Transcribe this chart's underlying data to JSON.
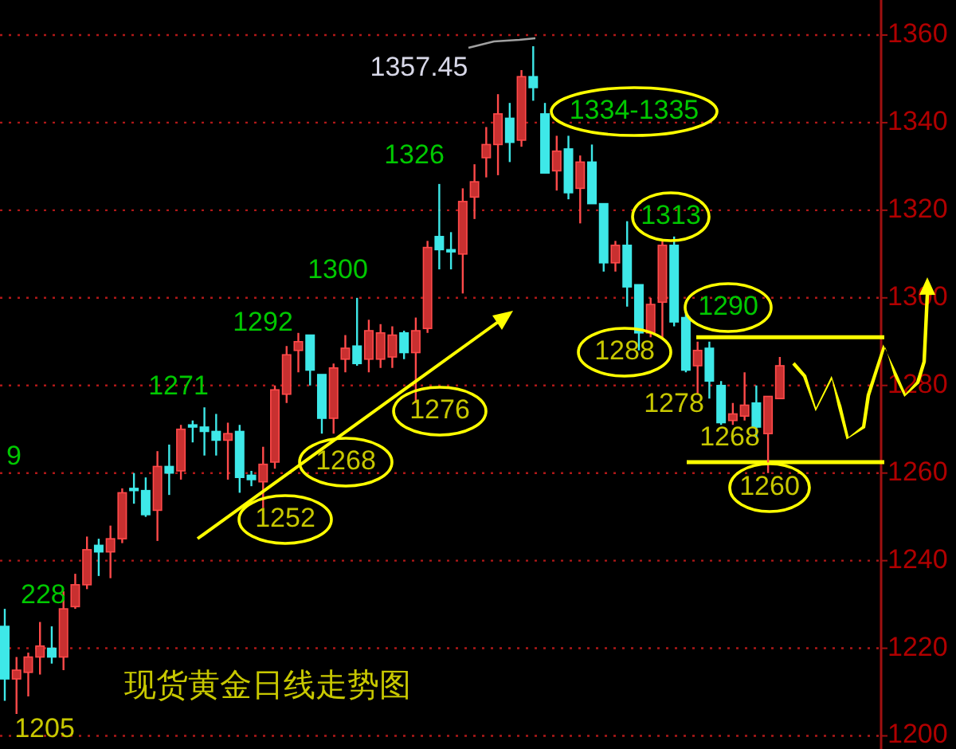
{
  "chart_data": {
    "type": "candlestick",
    "title": "现货黄金日线走势图",
    "categories": [
      null,
      null,
      null,
      null,
      null,
      null,
      null,
      null,
      null,
      null,
      null,
      null,
      null,
      null,
      null,
      null,
      null,
      null,
      null,
      null,
      null,
      null,
      null,
      null,
      null,
      null,
      null,
      null,
      null,
      null,
      null,
      null,
      null,
      null,
      null,
      null,
      null,
      null,
      null,
      null,
      null,
      null,
      null,
      null,
      null,
      null,
      null,
      null,
      null,
      null,
      null,
      null,
      null,
      null,
      null,
      null,
      null,
      null,
      null,
      null,
      null,
      null,
      null,
      null,
      null,
      null,
      null
    ],
    "ohlc": [
      [
        1225,
        1229,
        1208,
        1213
      ],
      [
        1213,
        1218,
        1205,
        1215
      ],
      [
        1214.5,
        1219,
        1209,
        1218
      ],
      [
        1218,
        1226,
        1214,
        1220.5
      ],
      [
        1220,
        1225,
        1216.5,
        1218
      ],
      [
        1218,
        1233,
        1215,
        1229
      ],
      [
        1229.5,
        1237,
        1229,
        1234.5
      ],
      [
        1234.5,
        1245.5,
        1233.5,
        1242.5
      ],
      [
        1243.5,
        1245,
        1236.5,
        1242
      ],
      [
        1242,
        1248,
        1236,
        1245
      ],
      [
        1245,
        1256.5,
        1244,
        1255.5
      ],
      [
        1256.5,
        1260,
        1253,
        1256
      ],
      [
        1256,
        1259,
        1250,
        1250.5
      ],
      [
        1251.5,
        1265,
        1244.5,
        1261.5
      ],
      [
        1261.5,
        1266.5,
        1255,
        1260
      ],
      [
        1260.5,
        1271,
        1258.5,
        1270
      ],
      [
        1271,
        1272,
        1267,
        1270.5
      ],
      [
        1270.5,
        1275,
        1264,
        1269.5
      ],
      [
        1269.5,
        1273.5,
        1264,
        1267.5
      ],
      [
        1267.5,
        1271.5,
        1258.5,
        1269
      ],
      [
        1269.5,
        1271,
        1255.5,
        1259
      ],
      [
        1259.5,
        1260.5,
        1257,
        1258.5
      ],
      [
        1258,
        1266,
        1252,
        1262
      ],
      [
        1262.5,
        1280,
        1261,
        1279
      ],
      [
        1278,
        1289,
        1276,
        1287
      ],
      [
        1288,
        1292,
        1283,
        1290
      ],
      [
        1291.5,
        1291.5,
        1280,
        1283.5
      ],
      [
        1282.5,
        1282.5,
        1269,
        1272.5
      ],
      [
        1272.5,
        1285,
        1269,
        1284
      ],
      [
        1286,
        1291.5,
        1283,
        1288.5
      ],
      [
        1289,
        1300,
        1284.5,
        1285
      ],
      [
        1286,
        1295,
        1283,
        1292.5
      ],
      [
        1286,
        1294,
        1284,
        1292
      ],
      [
        1286.5,
        1293.5,
        1284,
        1291.5
      ],
      [
        1292,
        1292.5,
        1286,
        1287.5
      ],
      [
        1287.5,
        1295.5,
        1276,
        1292.5
      ],
      [
        1293,
        1313,
        1292,
        1311.5
      ],
      [
        1314,
        1326,
        1306.5,
        1311
      ],
      [
        1311,
        1315,
        1306.5,
        1310.5
      ],
      [
        1310,
        1325,
        1301,
        1322
      ],
      [
        1323,
        1330.5,
        1318,
        1326.5
      ],
      [
        1332,
        1339,
        1327.5,
        1335
      ],
      [
        1335,
        1346.5,
        1328,
        1342
      ],
      [
        1341,
        1344.5,
        1331,
        1335.5
      ],
      [
        1336,
        1352,
        1334.5,
        1350.5
      ],
      [
        1350.5,
        1357.45,
        1345,
        1348
      ],
      [
        1342,
        1344.5,
        1328.5,
        1328.5
      ],
      [
        1329,
        1337,
        1324.5,
        1333.5
      ],
      [
        1334,
        1337,
        1322.5,
        1324
      ],
      [
        1325,
        1332.5,
        1317,
        1331
      ],
      [
        1331,
        1335,
        1321.5,
        1321.5
      ],
      [
        1321.5,
        1321.5,
        1306,
        1308
      ],
      [
        1308,
        1313,
        1306,
        1312
      ],
      [
        1312,
        1317.5,
        1298,
        1302.5
      ],
      [
        1303,
        1303,
        1288,
        1292
      ],
      [
        1292,
        1300,
        1291,
        1298.5
      ],
      [
        1299,
        1313,
        1290.5,
        1312
      ],
      [
        1312,
        1314,
        1293.5,
        1294.5
      ],
      [
        1295.5,
        1297,
        1283,
        1283.5
      ],
      [
        1284.5,
        1290,
        1278,
        1288
      ],
      [
        1288.5,
        1290,
        1277,
        1281
      ],
      [
        1280,
        1281,
        1271,
        1271.5
      ],
      [
        1272,
        1276,
        1271,
        1273.5
      ],
      [
        1273,
        1283,
        1272,
        1275.5
      ],
      [
        1276,
        1280,
        1268,
        1270.5
      ],
      [
        1269,
        1277.5,
        1260,
        1277.5
      ],
      [
        1277,
        1286.5,
        1277,
        1284.5
      ]
    ],
    "ylim": [
      1197,
      1368
    ],
    "yticks": [
      1200,
      1220,
      1240,
      1260,
      1280,
      1300,
      1320,
      1340,
      1360
    ],
    "grid": "y",
    "tick_labels": "y",
    "ref_lines": [
      {
        "axis": "y",
        "value": 1291,
        "color": "#ffff00"
      },
      {
        "axis": "y",
        "value": 1262.5,
        "color": "#ffff00"
      }
    ],
    "annotations": [
      "1357.45",
      "1326",
      "1334-1335",
      "1313",
      "1300",
      "1292",
      "1271",
      "9",
      "228",
      "1205",
      "1252",
      "1268",
      "1276",
      "1288",
      "1290",
      "1278",
      "1268",
      "1260"
    ]
  }
}
